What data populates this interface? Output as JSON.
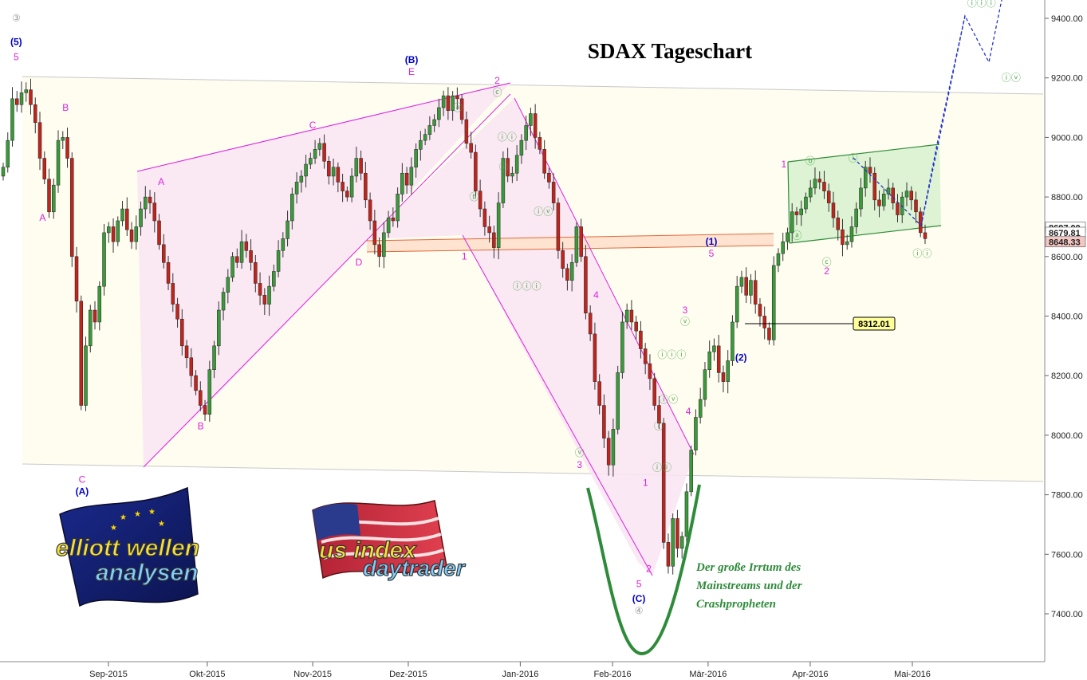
{
  "chart_data": {
    "type": "candlestick",
    "title": "SDAX Tageschart",
    "ylim": [
      7250,
      9550
    ],
    "y_ticks": [
      7400,
      7600,
      7800,
      8000,
      8200,
      8400,
      8600,
      8800,
      9000,
      9200,
      9400
    ],
    "y_tick_labels": [
      "7400.00",
      "7600.00",
      "7800.00",
      "8000.00",
      "8200.00",
      "8400.00",
      "8600.00",
      "8800.00",
      "9000.00",
      "9200.00",
      "9400.00"
    ],
    "x_months": [
      {
        "label": "Sep-2015",
        "date": "2015-09-01"
      },
      {
        "label": "Okt-2015",
        "date": "2015-10-01"
      },
      {
        "label": "Nov-2015",
        "date": "2015-11-02"
      },
      {
        "label": "Dez-2015",
        "date": "2015-12-01"
      },
      {
        "label": "Jan-2016",
        "date": "2016-01-04"
      },
      {
        "label": "Feb-2016",
        "date": "2016-02-01"
      },
      {
        "label": "Mär-2016",
        "date": "2016-03-01"
      },
      {
        "label": "Apr-2016",
        "date": "2016-04-01"
      },
      {
        "label": "Mai-2016",
        "date": "2016-05-02"
      }
    ],
    "price_tags": [
      {
        "label": "8697.00",
        "value": 8697.0,
        "color": "#ffffff"
      },
      {
        "label": "8679.81",
        "value": 8679.81,
        "color": "#ffffff"
      },
      {
        "label": "8648.33",
        "value": 8648.33,
        "color": "#f4c7c3"
      }
    ],
    "level_label": {
      "text": "8312.01",
      "value": 8312.01
    },
    "candle_closes": [
      8900,
      8990,
      9130,
      9110,
      9150,
      9160,
      9110,
      9050,
      8930,
      8860,
      8750,
      8840,
      8990,
      9000,
      8930,
      8600,
      8450,
      8100,
      8300,
      8420,
      8380,
      8500,
      8680,
      8700,
      8650,
      8720,
      8760,
      8690,
      8650,
      8700,
      8760,
      8800,
      8780,
      8720,
      8640,
      8580,
      8510,
      8440,
      8390,
      8300,
      8260,
      8200,
      8150,
      8100,
      8070,
      8220,
      8300,
      8420,
      8480,
      8530,
      8600,
      8580,
      8650,
      8620,
      8580,
      8510,
      8470,
      8440,
      8500,
      8550,
      8620,
      8660,
      8720,
      8810,
      8850,
      8870,
      8910,
      8930,
      8960,
      8980,
      8920,
      8870,
      8900,
      8850,
      8820,
      8800,
      8870,
      8930,
      8880,
      8790,
      8720,
      8640,
      8600,
      8680,
      8730,
      8720,
      8810,
      8880,
      8840,
      8900,
      8960,
      8990,
      9010,
      9040,
      9060,
      9100,
      9140,
      9090,
      9140,
      9130,
      9060,
      8980,
      8950,
      8820,
      8760,
      8700,
      8680,
      8630,
      8780,
      8930,
      8870,
      8880,
      8940,
      8990,
      9040,
      9080,
      9000,
      8960,
      8880,
      8850,
      8780,
      8620,
      8560,
      8520,
      8580,
      8700,
      8600,
      8410,
      8340,
      8180,
      8100,
      7990,
      7900,
      8020,
      8210,
      8380,
      8420,
      8380,
      8350,
      8290,
      8240,
      8190,
      8100,
      8040,
      7640,
      7560,
      7720,
      7620,
      7660,
      7810,
      7950,
      8060,
      8120,
      8220,
      8280,
      8300,
      8210,
      8180,
      8250,
      8380,
      8500,
      8530,
      8470,
      8520,
      8440,
      8400,
      8360,
      8320,
      8570,
      8610,
      8650,
      8680,
      8750,
      8740,
      8760,
      8800,
      8830,
      8860,
      8850,
      8820,
      8780,
      8730,
      8690,
      8640,
      8650,
      8700,
      8760,
      8830,
      8900,
      8880,
      8790,
      8770,
      8810,
      8830,
      8780,
      8740,
      8800,
      8820,
      8790,
      8750,
      8680,
      8660
    ],
    "wave_labels": [
      {
        "text": "③",
        "color": "#999999",
        "date": "2015-08-04",
        "price": 9390
      },
      {
        "text": "(5)",
        "color": "#0000cc",
        "date": "2015-08-04",
        "price": 9310
      },
      {
        "text": "5",
        "color": "#dd22dd",
        "date": "2015-08-04",
        "price": 9260
      },
      {
        "text": "A",
        "color": "#dd22dd",
        "date": "2015-08-12",
        "price": 8720
      },
      {
        "text": "B",
        "color": "#dd22dd",
        "date": "2015-08-19",
        "price": 9090
      },
      {
        "text": "C",
        "color": "#dd22dd",
        "date": "2015-08-24",
        "price": 7840
      },
      {
        "text": "(A)",
        "color": "#0000cc",
        "date": "2015-08-24",
        "price": 7800
      },
      {
        "text": "A",
        "color": "#dd22dd",
        "date": "2015-09-17",
        "price": 8840
      },
      {
        "text": "B",
        "color": "#dd22dd",
        "date": "2015-09-29",
        "price": 8020
      },
      {
        "text": "C",
        "color": "#dd22dd",
        "date": "2015-11-02",
        "price": 9030
      },
      {
        "text": "D",
        "color": "#dd22dd",
        "date": "2015-11-16",
        "price": 8570
      },
      {
        "text": "(B)",
        "color": "#0000cc",
        "date": "2015-12-02",
        "price": 9250
      },
      {
        "text": "E",
        "color": "#dd22dd",
        "date": "2015-12-02",
        "price": 9210
      },
      {
        "text": "2",
        "color": "#dd22dd",
        "date": "2015-12-28",
        "price": 9180
      },
      {
        "text": "ⓒ",
        "color": "#55aa55",
        "date": "2015-12-28",
        "price": 9140
      },
      {
        "text": "ⓐ",
        "color": "#55aa55",
        "date": "2015-12-16",
        "price": 9090
      },
      {
        "text": "ⓑ",
        "color": "#55aa55",
        "date": "2015-12-21",
        "price": 8790
      },
      {
        "text": "ⓘ",
        "color": "#55aa55",
        "date": "2015-12-30",
        "price": 8890
      },
      {
        "text": "ⓘⓘ",
        "color": "#55aa55",
        "date": "2015-12-31",
        "price": 8990
      },
      {
        "text": "1",
        "color": "#dd22dd",
        "date": "2015-12-18",
        "price": 8590
      },
      {
        "text": "ⓘⓘⓘ",
        "color": "#55aa55",
        "date": "2016-01-06",
        "price": 8490
      },
      {
        "text": "ⓘⓥ",
        "color": "#55aa55",
        "date": "2016-01-11",
        "price": 8740
      },
      {
        "text": "ⓥ",
        "color": "#55aa55",
        "date": "2016-01-22",
        "price": 7930
      },
      {
        "text": "3",
        "color": "#dd22dd",
        "date": "2016-01-22",
        "price": 7890
      },
      {
        "text": "4",
        "color": "#dd22dd",
        "date": "2016-01-27",
        "price": 8460
      },
      {
        "text": "1",
        "color": "#dd22dd",
        "date": "2016-02-11",
        "price": 7830
      },
      {
        "text": "2",
        "color": "#dd22dd",
        "date": "2016-02-12",
        "price": 7540
      },
      {
        "text": "5",
        "color": "#dd22dd",
        "date": "2016-02-09",
        "price": 7490
      },
      {
        "text": "(C)",
        "color": "#0000cc",
        "date": "2016-02-09",
        "price": 7440
      },
      {
        "text": "④",
        "color": "#999999",
        "date": "2016-02-09",
        "price": 7400
      },
      {
        "text": "ⓘ",
        "color": "#55aa55",
        "date": "2016-02-15",
        "price": 8020
      },
      {
        "text": "ⓘⓘ",
        "color": "#55aa55",
        "date": "2016-02-16",
        "price": 7880
      },
      {
        "text": "ⓘⓘⓘ",
        "color": "#55aa55",
        "date": "2016-02-19",
        "price": 8260
      },
      {
        "text": "ⓘⓥ",
        "color": "#55aa55",
        "date": "2016-02-18",
        "price": 8110
      },
      {
        "text": "ⓥ",
        "color": "#55aa55",
        "date": "2016-02-23",
        "price": 8370
      },
      {
        "text": "3",
        "color": "#dd22dd",
        "date": "2016-02-23",
        "price": 8410
      },
      {
        "text": "4",
        "color": "#dd22dd",
        "date": "2016-02-24",
        "price": 8070
      },
      {
        "text": "(1)",
        "color": "#0000cc",
        "date": "2016-03-02",
        "price": 8640
      },
      {
        "text": "5",
        "color": "#dd22dd",
        "date": "2016-03-02",
        "price": 8600
      },
      {
        "text": "(2)",
        "color": "#0000cc",
        "date": "2016-03-11",
        "price": 8250
      },
      {
        "text": "1",
        "color": "#dd22dd",
        "date": "2016-03-24",
        "price": 8900
      },
      {
        "text": "ⓐ",
        "color": "#55aa55",
        "date": "2016-03-28",
        "price": 8660
      },
      {
        "text": "ⓑ",
        "color": "#55aa55",
        "date": "2016-04-01",
        "price": 8910
      },
      {
        "text": "ⓒ",
        "color": "#55aa55",
        "date": "2016-04-06",
        "price": 8570
      },
      {
        "text": "2",
        "color": "#dd22dd",
        "date": "2016-04-06",
        "price": 8540
      },
      {
        "text": "ⓘ",
        "color": "#55aa55",
        "date": "2016-04-14",
        "price": 8920
      },
      {
        "text": "ⓘⓘ",
        "color": "#55aa55",
        "date": "2016-05-05",
        "price": 8600
      },
      {
        "text": "ⓘⓘⓘ",
        "color": "#55aa55",
        "date": "2016-05-23",
        "price": 9440
      },
      {
        "text": "ⓘⓥ",
        "color": "#55aa55",
        "date": "2016-06-01",
        "price": 9190
      }
    ]
  },
  "title": "SDAX Tageschart",
  "quote_lines": [
    "Der große Irrtum des",
    "Mainstreams und der",
    "Crashpropheten"
  ],
  "logos": {
    "left_top": "elliott wellen",
    "left_bottom": "analysen",
    "right_top": "us index",
    "right_bottom": "daytrader"
  },
  "colors": {
    "up": "#3a9a3a",
    "down": "#c0241c",
    "magenta": "#dd22dd",
    "wave_blue": "#0000cc",
    "wave_green": "#55aa55",
    "green_line": "#2e8b3a",
    "band_bg": "#fffdf0"
  }
}
